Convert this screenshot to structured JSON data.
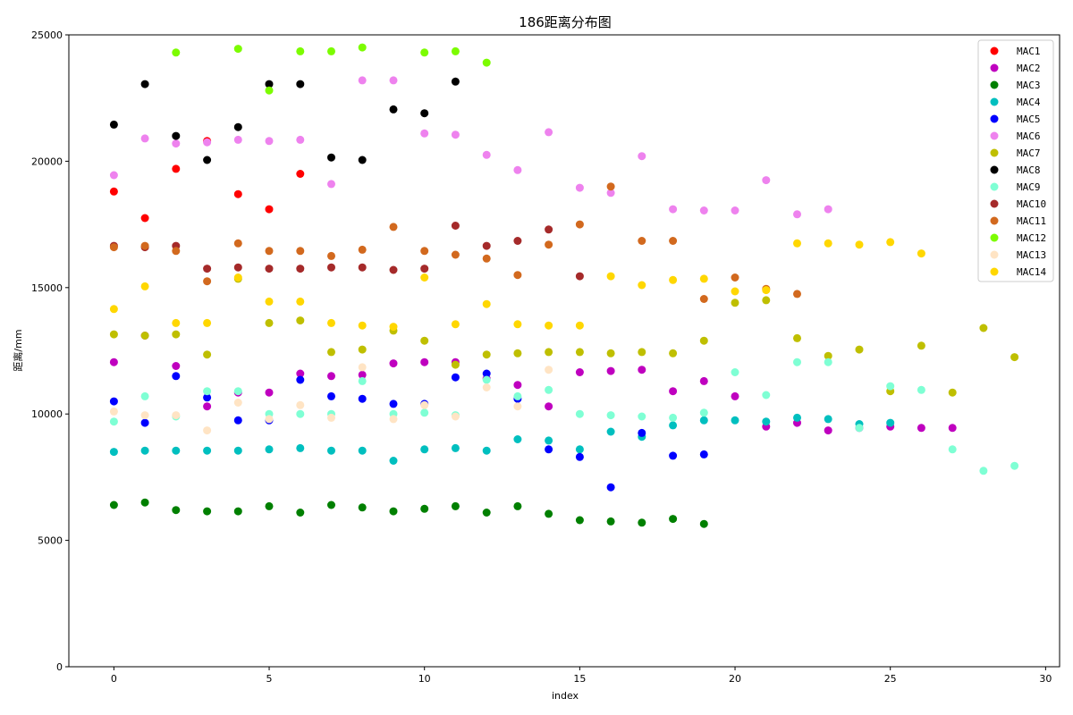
{
  "chart_data": {
    "type": "scatter",
    "title": "186距离分布图",
    "xlabel": "index",
    "ylabel": "距离/mm",
    "xlim": [
      -1.45,
      30.45
    ],
    "ylim": [
      0,
      25000
    ],
    "xticks": [
      0,
      5,
      10,
      15,
      20,
      25,
      30
    ],
    "yticks": [
      0,
      5000,
      10000,
      15000,
      20000,
      25000
    ],
    "grid": false,
    "legend_position": "top-right",
    "series": [
      {
        "name": "MAC1",
        "color": "#ff0000",
        "x": [
          0,
          1,
          2,
          3,
          4,
          5,
          6
        ],
        "y": [
          18800,
          17750,
          19700,
          20800,
          18700,
          18100,
          19500
        ]
      },
      {
        "name": "MAC2",
        "color": "#bf00bf",
        "x": [
          0,
          1,
          2,
          3,
          4,
          5,
          6,
          7,
          8,
          9,
          10,
          11,
          12,
          13,
          14,
          15,
          16,
          17,
          18,
          19,
          20,
          21,
          22,
          23,
          24,
          25,
          26,
          27
        ],
        "y": [
          12050,
          13100,
          11900,
          10300,
          10850,
          10850,
          11600,
          11500,
          11550,
          12000,
          12050,
          12050,
          11400,
          11150,
          10300,
          11650,
          11700,
          11750,
          10900,
          11300,
          10700,
          9500,
          9650,
          9350,
          9450,
          9500,
          9450,
          9450
        ]
      },
      {
        "name": "MAC3",
        "color": "#008000",
        "x": [
          0,
          1,
          2,
          3,
          4,
          5,
          6,
          7,
          8,
          9,
          10,
          11,
          12,
          13,
          14,
          15,
          16,
          17,
          18,
          19
        ],
        "y": [
          6400,
          6500,
          6200,
          6150,
          6150,
          6350,
          6100,
          6400,
          6300,
          6150,
          6250,
          6350,
          6100,
          6350,
          6050,
          5800,
          5750,
          5700,
          5850,
          5650
        ]
      },
      {
        "name": "MAC4",
        "color": "#00bfbf",
        "x": [
          0,
          1,
          2,
          3,
          4,
          5,
          6,
          7,
          8,
          9,
          10,
          11,
          12,
          13,
          14,
          15,
          16,
          17,
          18,
          19,
          20,
          21,
          22,
          23,
          24,
          25
        ],
        "y": [
          8500,
          8550,
          8550,
          8550,
          8550,
          8600,
          8650,
          8550,
          8550,
          8150,
          8600,
          8650,
          8550,
          9000,
          8950,
          8600,
          9300,
          9100,
          9550,
          9750,
          9750,
          9700,
          9850,
          9800,
          9600,
          9650
        ]
      },
      {
        "name": "MAC5",
        "color": "#0000ff",
        "x": [
          0,
          1,
          2,
          3,
          4,
          5,
          6,
          7,
          8,
          9,
          10,
          11,
          12,
          13,
          14,
          15,
          16,
          17,
          18,
          19
        ],
        "y": [
          10500,
          9650,
          11500,
          10650,
          9750,
          9750,
          11350,
          10700,
          10600,
          10400,
          10400,
          11450,
          11600,
          10600,
          8600,
          8300,
          7100,
          9250,
          8350,
          8400
        ]
      },
      {
        "name": "MAC6",
        "color": "#ee82ee",
        "x": [
          0,
          1,
          2,
          3,
          4,
          5,
          6,
          7,
          8,
          9,
          10,
          11,
          12,
          13,
          14,
          15,
          16,
          17,
          18,
          19,
          20,
          21,
          22,
          23
        ],
        "y": [
          19450,
          20900,
          20700,
          20750,
          20850,
          20800,
          20850,
          19100,
          23200,
          23200,
          21100,
          21050,
          20250,
          19650,
          21150,
          18950,
          18750,
          20200,
          18100,
          18050,
          18050,
          19250,
          17900,
          18100
        ]
      },
      {
        "name": "MAC7",
        "color": "#bfbf00",
        "x": [
          0,
          1,
          2,
          3,
          4,
          5,
          6,
          7,
          8,
          9,
          10,
          11,
          12,
          13,
          14,
          15,
          16,
          17,
          18,
          19,
          20,
          21,
          22,
          23,
          24,
          25,
          26,
          27,
          28,
          29
        ],
        "y": [
          13150,
          13100,
          13150,
          12350,
          15350,
          13600,
          13700,
          12450,
          12550,
          13300,
          12900,
          11950,
          12350,
          12400,
          12450,
          12450,
          12400,
          12450,
          12400,
          12900,
          14400,
          14500,
          13000,
          12300,
          12550,
          10900,
          12700,
          10850,
          13400,
          12250
        ]
      },
      {
        "name": "MAC8",
        "color": "#000000",
        "x": [
          0,
          1,
          2,
          3,
          4,
          5,
          6,
          7,
          8,
          9,
          10,
          11
        ],
        "y": [
          21450,
          23050,
          21000,
          20050,
          21350,
          23050,
          23050,
          20150,
          20050,
          22050,
          21900,
          23150
        ]
      },
      {
        "name": "MAC9",
        "color": "#7fffd4",
        "x": [
          0,
          1,
          2,
          3,
          4,
          5,
          6,
          7,
          8,
          9,
          10,
          11,
          12,
          13,
          14,
          15,
          16,
          17,
          18,
          19,
          20,
          21,
          22,
          23,
          24,
          25,
          26,
          27,
          28,
          29
        ],
        "y": [
          9700,
          10700,
          9900,
          10900,
          10900,
          10000,
          10000,
          10000,
          11300,
          10000,
          10050,
          9950,
          11350,
          10700,
          10950,
          10000,
          9950,
          9900,
          9850,
          10050,
          11650,
          10750,
          12050,
          12050,
          9450,
          11100,
          10950,
          8600,
          7750,
          7950
        ]
      },
      {
        "name": "MAC10",
        "color": "#a52a2a",
        "x": [
          0,
          1,
          2,
          3,
          4,
          5,
          6,
          7,
          8,
          9,
          10,
          11,
          12,
          13,
          14,
          15
        ],
        "y": [
          16650,
          16600,
          16650,
          15750,
          15800,
          15750,
          15750,
          15800,
          15800,
          15700,
          15750,
          17450,
          16650,
          16850,
          17300,
          15450
        ]
      },
      {
        "name": "MAC11",
        "color": "#d2691e",
        "x": [
          0,
          1,
          2,
          3,
          4,
          5,
          6,
          7,
          8,
          9,
          10,
          11,
          12,
          13,
          14,
          15,
          16,
          17,
          18,
          19,
          20,
          21,
          22
        ],
        "y": [
          16600,
          16650,
          16450,
          15250,
          16750,
          16450,
          16450,
          16250,
          16500,
          17400,
          16450,
          16300,
          16150,
          15500,
          16700,
          17500,
          19000,
          16850,
          16850,
          14550,
          15400,
          14950,
          14750
        ]
      },
      {
        "name": "MAC12",
        "color": "#7cfc00",
        "x": [
          2,
          4,
          5,
          6,
          7,
          8,
          10,
          11,
          12
        ],
        "y": [
          24300,
          24450,
          22800,
          24350,
          24350,
          24500,
          24300,
          24350,
          23900
        ]
      },
      {
        "name": "MAC13",
        "color": "#ffe4c4",
        "x": [
          0,
          1,
          2,
          3,
          4,
          5,
          6,
          7,
          8,
          9,
          10,
          11,
          12,
          13,
          14
        ],
        "y": [
          10100,
          9950,
          9950,
          9350,
          10450,
          9800,
          10350,
          9850,
          11850,
          9800,
          10350,
          9900,
          11050,
          10300,
          11750
        ]
      },
      {
        "name": "MAC14",
        "color": "#ffd700",
        "x": [
          0,
          1,
          2,
          3,
          4,
          5,
          6,
          7,
          8,
          9,
          10,
          11,
          12,
          13,
          14,
          15,
          16,
          17,
          18,
          19,
          20,
          21,
          22,
          23,
          24,
          25,
          26
        ],
        "y": [
          14150,
          15050,
          13600,
          13600,
          15400,
          14450,
          14450,
          13600,
          13500,
          13450,
          15400,
          13550,
          14350,
          13550,
          13500,
          13500,
          15450,
          15100,
          15300,
          15350,
          14850,
          14900,
          16750,
          16750,
          16700,
          16800,
          16350
        ]
      }
    ]
  }
}
